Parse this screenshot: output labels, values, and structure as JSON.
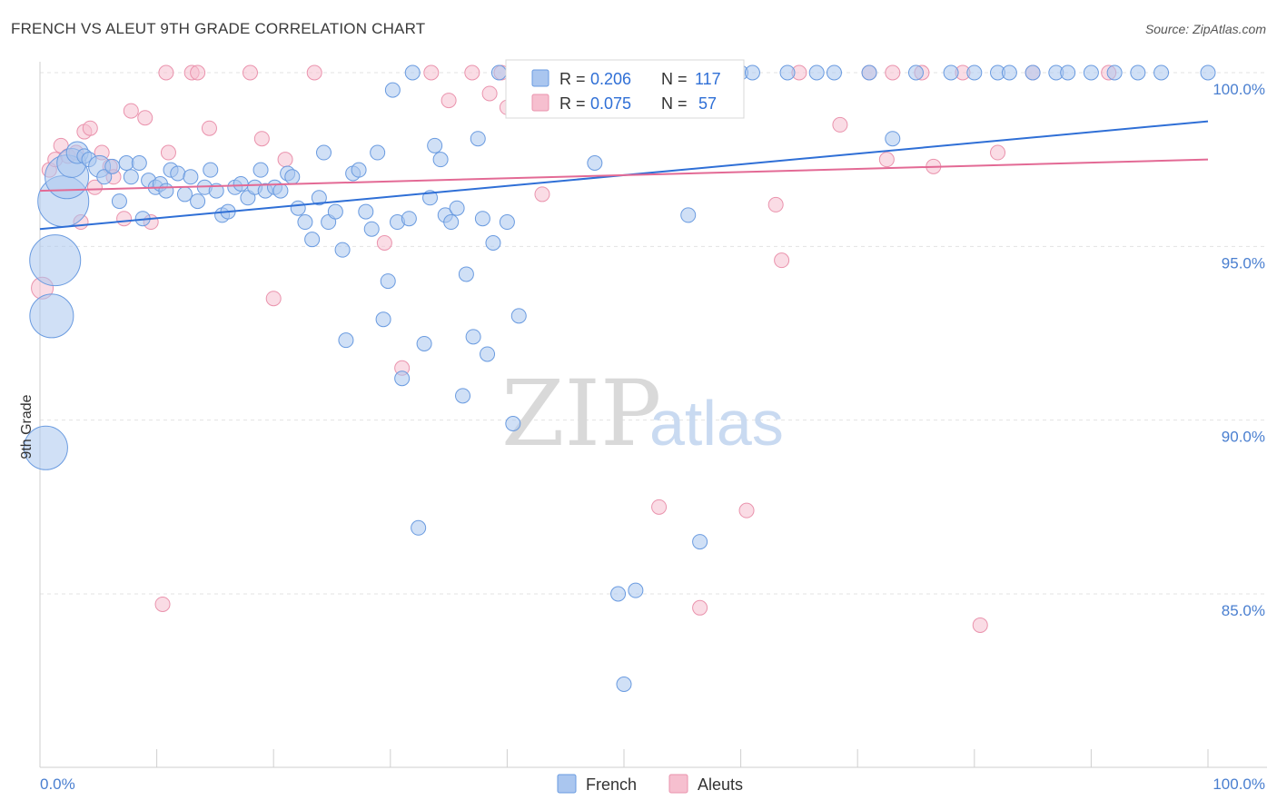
{
  "title": "FRENCH VS ALEUT 9TH GRADE CORRELATION CHART",
  "source": "Source: ZipAtlas.com",
  "watermark": {
    "part1": "ZIP",
    "part2": "atlas"
  },
  "legend": {
    "r_label": "R = ",
    "n_label": "N = ",
    "french": {
      "r": "0.206",
      "n": "117"
    },
    "aleuts": {
      "r": "0.075",
      "n": "57"
    }
  },
  "bottom_legend": {
    "french": "French",
    "aleuts": "Aleuts"
  },
  "colors": {
    "french_fill": "#aac6ef",
    "french_stroke": "#6a9be0",
    "french_line": "#2f6fd6",
    "aleut_fill": "#f6bfcf",
    "aleut_stroke": "#ea93ad",
    "aleut_line": "#e36a95",
    "tick_text": "#4a7fd0",
    "grid": "#e3e3e3"
  },
  "chart_data": {
    "type": "scatter",
    "title": "FRENCH VS ALEUT 9TH GRADE CORRELATION CHART",
    "xlabel": "",
    "ylabel": "9th Grade",
    "xlim": [
      0,
      100
    ],
    "ylim": [
      80.5,
      100.5
    ],
    "x_ticks": [
      "0.0%",
      "100.0%"
    ],
    "y_ticks": [
      {
        "value": 85,
        "label": "85.0%"
      },
      {
        "value": 90,
        "label": "90.0%"
      },
      {
        "value": 95,
        "label": "95.0%"
      },
      {
        "value": 100,
        "label": "100.0%"
      }
    ],
    "grid": true,
    "legend_position": "top-center",
    "series": [
      {
        "name": "French",
        "r": 0.206,
        "n": 117,
        "trend": {
          "y_at_0": 95.5,
          "y_at_100": 98.6
        },
        "points": [
          [
            0.5,
            89.2,
            3
          ],
          [
            1,
            93.0,
            3
          ],
          [
            1.3,
            94.6,
            3.5
          ],
          [
            2,
            96.3,
            3.5
          ],
          [
            2.3,
            97.0,
            3
          ],
          [
            2.7,
            97.4,
            2
          ],
          [
            3.2,
            97.7,
            1.5
          ],
          [
            3.8,
            97.6,
            1
          ],
          [
            4.2,
            97.5,
            1
          ],
          [
            5.1,
            97.3,
            1.5
          ],
          [
            5.5,
            97.0,
            1
          ],
          [
            6.2,
            97.3,
            1
          ],
          [
            6.8,
            96.3,
            1
          ],
          [
            7.4,
            97.4,
            1
          ],
          [
            7.8,
            97.0,
            1
          ],
          [
            8.5,
            97.4,
            1
          ],
          [
            8.8,
            95.8,
            1
          ],
          [
            9.3,
            96.9,
            1
          ],
          [
            9.9,
            96.7,
            1
          ],
          [
            10.3,
            96.8,
            1
          ],
          [
            10.8,
            96.6,
            1
          ],
          [
            11.2,
            97.2,
            1
          ],
          [
            11.8,
            97.1,
            1
          ],
          [
            12.4,
            96.5,
            1
          ],
          [
            12.9,
            97.0,
            1
          ],
          [
            13.5,
            96.3,
            1
          ],
          [
            14.1,
            96.7,
            1
          ],
          [
            14.6,
            97.2,
            1
          ],
          [
            15.1,
            96.6,
            1
          ],
          [
            15.6,
            95.9,
            1
          ],
          [
            16.1,
            96.0,
            1
          ],
          [
            16.7,
            96.7,
            1
          ],
          [
            17.2,
            96.8,
            1
          ],
          [
            17.8,
            96.4,
            1
          ],
          [
            18.4,
            96.7,
            1
          ],
          [
            18.9,
            97.2,
            1
          ],
          [
            19.3,
            96.6,
            1
          ],
          [
            20.1,
            96.7,
            1
          ],
          [
            20.6,
            96.6,
            1
          ],
          [
            21.2,
            97.1,
            1
          ],
          [
            21.6,
            97.0,
            1
          ],
          [
            22.1,
            96.1,
            1
          ],
          [
            22.7,
            95.7,
            1
          ],
          [
            23.3,
            95.2,
            1
          ],
          [
            23.9,
            96.4,
            1
          ],
          [
            24.3,
            97.7,
            1
          ],
          [
            24.7,
            95.7,
            1
          ],
          [
            25.3,
            96.0,
            1
          ],
          [
            25.9,
            94.9,
            1
          ],
          [
            26.2,
            92.3,
            1
          ],
          [
            26.8,
            97.1,
            1
          ],
          [
            27.3,
            97.2,
            1
          ],
          [
            27.9,
            96.0,
            1
          ],
          [
            28.4,
            95.5,
            1
          ],
          [
            28.9,
            97.7,
            1
          ],
          [
            29.4,
            92.9,
            1
          ],
          [
            29.8,
            94.0,
            1
          ],
          [
            30.2,
            99.5,
            1
          ],
          [
            30.6,
            95.7,
            1
          ],
          [
            31.0,
            91.2,
            1
          ],
          [
            31.6,
            95.8,
            1
          ],
          [
            31.9,
            100.0,
            1
          ],
          [
            32.4,
            86.9,
            1
          ],
          [
            32.9,
            92.2,
            1
          ],
          [
            33.4,
            96.4,
            1
          ],
          [
            33.8,
            97.9,
            1
          ],
          [
            34.3,
            97.5,
            1
          ],
          [
            34.7,
            95.9,
            1
          ],
          [
            35.2,
            95.7,
            1
          ],
          [
            35.7,
            96.1,
            1
          ],
          [
            36.2,
            90.7,
            1
          ],
          [
            36.5,
            94.2,
            1
          ],
          [
            37.1,
            92.4,
            1
          ],
          [
            37.5,
            98.1,
            1
          ],
          [
            37.9,
            95.8,
            1
          ],
          [
            38.3,
            91.9,
            1
          ],
          [
            38.8,
            95.1,
            1
          ],
          [
            39.3,
            100.0,
            1
          ],
          [
            40.0,
            95.7,
            1
          ],
          [
            40.5,
            89.9,
            1
          ],
          [
            41.0,
            93.0,
            1
          ],
          [
            42.0,
            100.0,
            1
          ],
          [
            43.5,
            100.0,
            1
          ],
          [
            45.0,
            100.0,
            1
          ],
          [
            46.5,
            100.0,
            1
          ],
          [
            47.5,
            97.4,
            1
          ],
          [
            48.5,
            100.0,
            1
          ],
          [
            49.5,
            85.0,
            1
          ],
          [
            50.0,
            82.4,
            1
          ],
          [
            51.0,
            85.1,
            1
          ],
          [
            53.0,
            100.0,
            1
          ],
          [
            55.0,
            100.0,
            1
          ],
          [
            55.5,
            95.9,
            1
          ],
          [
            56.5,
            86.5,
            1
          ],
          [
            58.0,
            100.0,
            1
          ],
          [
            60.0,
            100.0,
            1
          ],
          [
            61.0,
            100.0,
            1
          ],
          [
            64.0,
            100.0,
            1
          ],
          [
            66.5,
            100.0,
            1
          ],
          [
            68.0,
            100.0,
            1
          ],
          [
            71.0,
            100.0,
            1
          ],
          [
            73.0,
            98.1,
            1
          ],
          [
            75.0,
            100.0,
            1
          ],
          [
            78.0,
            100.0,
            1
          ],
          [
            80.0,
            100.0,
            1
          ],
          [
            82.0,
            100.0,
            1
          ],
          [
            83.0,
            100.0,
            1
          ],
          [
            85.0,
            100.0,
            1
          ],
          [
            87.0,
            100.0,
            1
          ],
          [
            88.0,
            100.0,
            1
          ],
          [
            90.0,
            100.0,
            1
          ],
          [
            92.0,
            100.0,
            1
          ],
          [
            94.0,
            100.0,
            1
          ],
          [
            96.0,
            100.0,
            1
          ],
          [
            100.0,
            100.0,
            1
          ]
        ]
      },
      {
        "name": "Aleuts",
        "r": 0.075,
        "n": 57,
        "trend": {
          "y_at_0": 96.6,
          "y_at_100": 97.5
        },
        "points": [
          [
            0.2,
            93.8,
            1.5
          ],
          [
            0.8,
            97.2,
            1
          ],
          [
            1.3,
            97.5,
            1
          ],
          [
            1.8,
            97.9,
            1
          ],
          [
            2.4,
            97.6,
            1
          ],
          [
            3.1,
            97.7,
            1
          ],
          [
            3.5,
            95.7,
            1
          ],
          [
            3.8,
            98.3,
            1
          ],
          [
            4.3,
            98.4,
            1
          ],
          [
            4.7,
            96.7,
            1
          ],
          [
            5.3,
            97.7,
            1
          ],
          [
            6.0,
            97.3,
            1
          ],
          [
            6.3,
            97.0,
            1
          ],
          [
            7.2,
            95.8,
            1
          ],
          [
            7.8,
            98.9,
            1
          ],
          [
            9.0,
            98.7,
            1
          ],
          [
            9.5,
            95.7,
            1
          ],
          [
            10.5,
            84.7,
            1
          ],
          [
            10.8,
            100.0,
            1
          ],
          [
            11.0,
            97.7,
            1
          ],
          [
            13.0,
            100.0,
            1
          ],
          [
            13.5,
            100.0,
            1
          ],
          [
            14.5,
            98.4,
            1
          ],
          [
            18.0,
            100.0,
            1
          ],
          [
            19.0,
            98.1,
            1
          ],
          [
            20.0,
            93.5,
            1
          ],
          [
            21.0,
            97.5,
            1
          ],
          [
            23.5,
            100.0,
            1
          ],
          [
            29.5,
            95.1,
            1
          ],
          [
            31.0,
            91.5,
            1
          ],
          [
            33.5,
            100.0,
            1
          ],
          [
            35.0,
            99.2,
            1
          ],
          [
            37.0,
            100.0,
            1
          ],
          [
            38.5,
            99.4,
            1
          ],
          [
            39.5,
            100.0,
            1
          ],
          [
            40.0,
            99.0,
            1
          ],
          [
            43.0,
            96.5,
            1
          ],
          [
            44.0,
            99.4,
            1
          ],
          [
            48.0,
            100.0,
            1
          ],
          [
            53.0,
            87.5,
            1
          ],
          [
            55.0,
            100.0,
            1
          ],
          [
            56.5,
            84.6,
            1
          ],
          [
            60.5,
            87.4,
            1
          ],
          [
            63.0,
            96.2,
            1
          ],
          [
            63.5,
            94.6,
            1
          ],
          [
            65.0,
            100.0,
            1
          ],
          [
            68.5,
            98.5,
            1
          ],
          [
            71.0,
            100.0,
            1
          ],
          [
            72.5,
            97.5,
            1
          ],
          [
            73.0,
            100.0,
            1
          ],
          [
            75.5,
            100.0,
            1
          ],
          [
            76.5,
            97.3,
            1
          ],
          [
            79.0,
            100.0,
            1
          ],
          [
            80.5,
            84.1,
            1
          ],
          [
            82.0,
            97.7,
            1
          ],
          [
            85.0,
            100.0,
            1
          ],
          [
            91.5,
            100.0,
            1
          ]
        ]
      }
    ]
  }
}
